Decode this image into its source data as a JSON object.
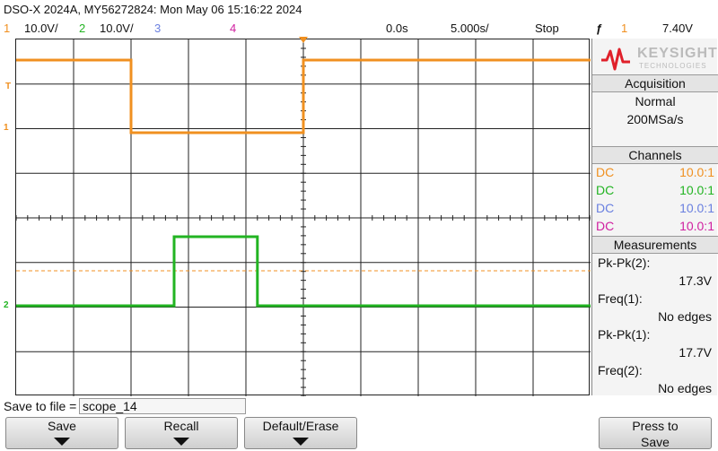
{
  "title_bar": {
    "text": "DSO-X 2024A, MY56272824: Mon May 06 15:16:22 2024"
  },
  "status_bar": {
    "ch1_num": "1",
    "ch1_scale": "10.0V/",
    "ch2_num": "2",
    "ch2_scale": "10.0V/",
    "ch3_num": "3",
    "ch4_num": "4",
    "time_position": "0.0s",
    "time_scale": "5.000s/",
    "run_state": "Stop",
    "trigger_icon": "ƒ",
    "trigger_channel": "1",
    "trigger_level": "7.40V"
  },
  "colors": {
    "ch1": "#f09020",
    "ch2": "#22b422",
    "ch3": "#6a80e0",
    "ch4": "#d020a0",
    "grid": "#222222",
    "accent": "#e0202a"
  },
  "screen": {
    "trigger_marker": "T",
    "ch1_marker": "1",
    "ch2_marker": "2"
  },
  "waveforms": {
    "ch1": {
      "segments": [
        {
          "from": 0,
          "to": 2,
          "level": "high"
        },
        {
          "from": 2,
          "to": 5,
          "level": "low"
        },
        {
          "from": 5,
          "to": 10,
          "level": "high"
        }
      ]
    },
    "ch2": {
      "segments": [
        {
          "from": 0,
          "to": 2.75,
          "level": "low"
        },
        {
          "from": 2.75,
          "to": 4.2,
          "level": "high"
        },
        {
          "from": 4.2,
          "to": 10,
          "level": "low"
        }
      ]
    }
  },
  "side_panel": {
    "brand": "KEYSIGHT",
    "brand_sub": "TECHNOLOGIES",
    "acquisition": {
      "header": "Acquisition",
      "mode": "Normal",
      "rate": "200MSa/s"
    },
    "channels": {
      "header": "Channels",
      "rows": [
        {
          "coupling": "DC",
          "probe": "10.0:1"
        },
        {
          "coupling": "DC",
          "probe": "10.0:1"
        },
        {
          "coupling": "DC",
          "probe": "10.0:1"
        },
        {
          "coupling": "DC",
          "probe": "10.0:1"
        }
      ]
    },
    "measurements": {
      "header": "Measurements",
      "items": [
        {
          "label": "Pk-Pk(2):",
          "value": "17.3V"
        },
        {
          "label": "Freq(1):",
          "value": "No edges"
        },
        {
          "label": "Pk-Pk(1):",
          "value": "17.7V"
        },
        {
          "label": "Freq(2):",
          "value": "No edges"
        }
      ]
    }
  },
  "save_bar": {
    "label": "Save to file =",
    "filename": "scope_14"
  },
  "softkeys": {
    "save": "Save",
    "recall": "Recall",
    "default": "Default/Erase",
    "press_to_save_1": "Press to",
    "press_to_save_2": "Save"
  }
}
